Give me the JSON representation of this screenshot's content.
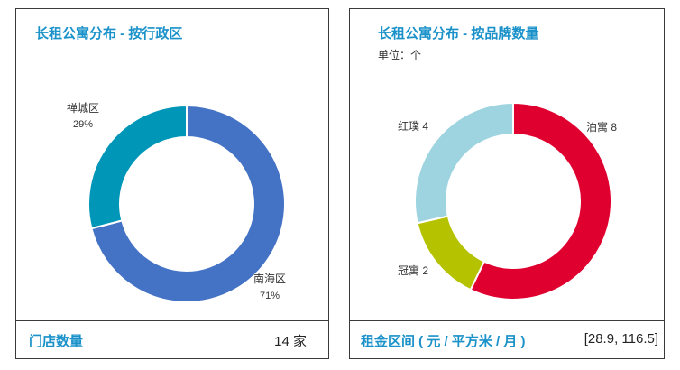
{
  "left": {
    "title": "长租公寓分布 - 按行政区",
    "footer_label": "门店数量",
    "footer_value": "14 家"
  },
  "right": {
    "title": "长租公寓分布 - 按品牌数量",
    "unit": "单位：个",
    "footer_label": "租金区间 ( 元 / 平方米 / 月 )",
    "footer_value": "[28.9, 116.5]"
  },
  "chart_data": [
    {
      "type": "pie",
      "title": "长租公寓分布 - 按行政区",
      "slices": [
        {
          "label": "南海区",
          "percent": "71%",
          "value": 71,
          "color": "#4472c4"
        },
        {
          "label": "禅城区",
          "percent": "29%",
          "value": 29,
          "color": "#0096b8"
        }
      ]
    },
    {
      "type": "pie",
      "title": "长租公寓分布 - 按品牌数量",
      "unit": "单位：个",
      "slices": [
        {
          "label": "泊寓",
          "value": 8,
          "display": "泊寓 8",
          "color": "#e00030"
        },
        {
          "label": "冠寓",
          "value": 2,
          "display": "冠寓 2",
          "color": "#b5c200"
        },
        {
          "label": "红璞",
          "value": 4,
          "display": "红璞 4",
          "color": "#9dd4e0"
        }
      ]
    }
  ]
}
